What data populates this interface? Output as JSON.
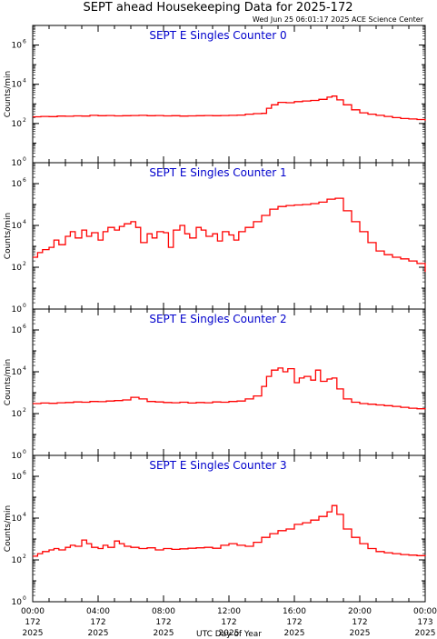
{
  "header": {
    "title": "SEPT ahead Housekeeping Data for 2025-172",
    "timestamp": "Wed Jun 25 06:01:17 2025 ACE Science Center"
  },
  "colors": {
    "trace": "#ff0000",
    "panel_title": "#0000cc",
    "axis": "#000000"
  },
  "chart_data": [
    {
      "type": "line",
      "title": "SEPT E Singles Counter 0",
      "ylabel": "Counts/min",
      "yscale": "log",
      "ylim": [
        1,
        10000000
      ],
      "yticks": [
        "10^0",
        "10^2",
        "10^4",
        "10^6"
      ],
      "xlim": [
        0,
        24
      ],
      "series": [
        {
          "x": [
            0,
            0.5,
            1,
            1.5,
            2,
            2.5,
            3,
            3.5,
            4,
            4.5,
            5,
            5.5,
            6,
            6.5,
            7,
            7.5,
            8,
            8.5,
            9,
            9.5,
            10,
            10.5,
            11,
            11.5,
            12,
            12.5,
            13,
            13.5,
            14,
            14.3,
            14.6,
            15,
            15.5,
            16,
            16.5,
            17,
            17.5,
            18,
            18.3,
            18.6,
            19,
            19.5,
            20,
            20.5,
            21,
            21.5,
            22,
            22.5,
            23,
            23.5,
            24
          ],
          "values": [
            220,
            230,
            225,
            240,
            235,
            245,
            240,
            260,
            250,
            255,
            245,
            250,
            255,
            260,
            250,
            255,
            245,
            250,
            240,
            245,
            250,
            255,
            250,
            255,
            260,
            270,
            300,
            320,
            330,
            600,
            900,
            1200,
            1150,
            1300,
            1400,
            1500,
            1700,
            2200,
            2500,
            1600,
            900,
            500,
            350,
            300,
            260,
            230,
            200,
            180,
            170,
            160,
            140
          ]
        }
      ]
    },
    {
      "type": "line",
      "title": "SEPT E Singles Counter 1",
      "ylabel": "Counts/min",
      "yscale": "log",
      "ylim": [
        1,
        10000000
      ],
      "yticks": [
        "10^0",
        "10^2",
        "10^4",
        "10^6"
      ],
      "xlim": [
        0,
        24
      ],
      "series": [
        {
          "x": [
            0,
            0.3,
            0.6,
            1,
            1.3,
            1.6,
            2,
            2.3,
            2.6,
            3,
            3.3,
            3.6,
            4,
            4.3,
            4.6,
            5,
            5.3,
            5.6,
            6,
            6.3,
            6.6,
            7,
            7.3,
            7.6,
            8,
            8.3,
            8.6,
            9,
            9.3,
            9.6,
            10,
            10.3,
            10.6,
            11,
            11.3,
            11.6,
            12,
            12.3,
            12.6,
            13,
            13.5,
            14,
            14.5,
            15,
            15.5,
            16,
            16.5,
            17,
            17.5,
            18,
            18.5,
            19,
            19.5,
            20,
            20.5,
            21,
            21.5,
            22,
            22.5,
            23,
            23.5,
            24
          ],
          "values": [
            300,
            500,
            700,
            900,
            2000,
            1200,
            3000,
            5000,
            2500,
            6000,
            3000,
            4500,
            2000,
            5000,
            8000,
            6000,
            9000,
            12000,
            15000,
            8000,
            1500,
            4000,
            2500,
            5000,
            4500,
            900,
            6000,
            10000,
            4000,
            2500,
            8000,
            6000,
            3000,
            4000,
            1800,
            5000,
            3500,
            2000,
            5000,
            8000,
            15000,
            30000,
            60000,
            80000,
            90000,
            95000,
            100000,
            110000,
            130000,
            180000,
            200000,
            50000,
            15000,
            5000,
            1500,
            600,
            400,
            300,
            250,
            200,
            150,
            60
          ]
        }
      ]
    },
    {
      "type": "line",
      "title": "SEPT E Singles Counter 2",
      "ylabel": "Counts/min",
      "yscale": "log",
      "ylim": [
        1,
        10000000
      ],
      "yticks": [
        "10^0",
        "10^2",
        "10^4",
        "10^6"
      ],
      "xlim": [
        0,
        24
      ],
      "series": [
        {
          "x": [
            0,
            0.5,
            1,
            1.5,
            2,
            2.5,
            3,
            3.5,
            4,
            4.5,
            5,
            5.5,
            6,
            6.5,
            7,
            7.5,
            8,
            8.5,
            9,
            9.5,
            10,
            10.5,
            11,
            11.5,
            12,
            12.5,
            13,
            13.5,
            14,
            14.3,
            14.6,
            15,
            15.3,
            15.6,
            16,
            16.3,
            16.6,
            17,
            17.3,
            17.6,
            18,
            18.3,
            18.6,
            19,
            19.5,
            20,
            20.5,
            21,
            21.5,
            22,
            22.5,
            23,
            23.5,
            24
          ],
          "values": [
            300,
            320,
            310,
            330,
            340,
            360,
            350,
            380,
            370,
            400,
            420,
            450,
            600,
            500,
            380,
            360,
            340,
            330,
            350,
            320,
            340,
            330,
            360,
            350,
            380,
            400,
            500,
            700,
            2000,
            6000,
            12000,
            15000,
            10000,
            14000,
            3000,
            5000,
            6000,
            4000,
            12000,
            3500,
            4500,
            5000,
            1500,
            500,
            350,
            300,
            280,
            260,
            240,
            220,
            200,
            180,
            170,
            160
          ]
        }
      ]
    },
    {
      "type": "line",
      "title": "SEPT E Singles Counter 3",
      "ylabel": "Counts/min",
      "yscale": "log",
      "ylim": [
        1,
        10000000
      ],
      "yticks": [
        "10^0",
        "10^2",
        "10^4",
        "10^6"
      ],
      "xlim": [
        0,
        24
      ],
      "xticks": [
        "00:00\n172\n2025",
        "04:00\n172\n2025",
        "08:00\n172\n2025",
        "12:00\n172\n2025",
        "16:00\n172\n2025",
        "20:00\n172\n2025",
        "00:00\n173\n2025"
      ],
      "xlabel": "UTC Day of Year",
      "series": [
        {
          "x": [
            0,
            0.3,
            0.6,
            1,
            1.3,
            1.6,
            2,
            2.3,
            2.6,
            3,
            3.3,
            3.6,
            4,
            4.3,
            4.6,
            5,
            5.3,
            5.6,
            6,
            6.5,
            7,
            7.5,
            8,
            8.5,
            9,
            9.5,
            10,
            10.5,
            11,
            11.5,
            12,
            12.5,
            13,
            13.5,
            14,
            14.5,
            15,
            15.5,
            16,
            16.5,
            17,
            17.5,
            18,
            18.3,
            18.6,
            19,
            19.5,
            20,
            20.5,
            21,
            21.5,
            22,
            22.5,
            23,
            23.5,
            24
          ],
          "values": [
            150,
            200,
            250,
            300,
            350,
            300,
            400,
            500,
            450,
            900,
            600,
            400,
            350,
            500,
            400,
            800,
            600,
            450,
            400,
            350,
            380,
            300,
            350,
            320,
            340,
            360,
            380,
            400,
            360,
            500,
            600,
            500,
            450,
            700,
            1200,
            1800,
            2500,
            3000,
            5000,
            6000,
            8000,
            12000,
            20000,
            40000,
            15000,
            3000,
            1200,
            600,
            350,
            250,
            220,
            200,
            180,
            170,
            160,
            150
          ]
        }
      ]
    }
  ]
}
